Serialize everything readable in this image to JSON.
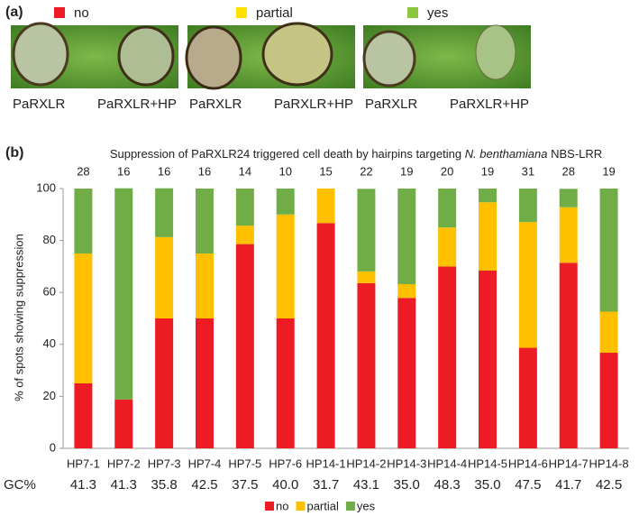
{
  "panel_a": {
    "label": "(a)",
    "legend": [
      {
        "name": "no",
        "color": "#ed1c24"
      },
      {
        "name": "partial",
        "color": "#ffe000"
      },
      {
        "name": "yes",
        "color": "#8cc63f"
      }
    ],
    "photos": [
      {
        "left": "PaRXLR",
        "right": "PaRXLR+HP"
      },
      {
        "left": "PaRXLR",
        "right": "PaRXLR+HP"
      },
      {
        "left": "PaRXLR",
        "right": "PaRXLR+HP"
      }
    ]
  },
  "chart_data": {
    "type": "bar",
    "stacked": true,
    "panel_label": "(b)",
    "title_parts": [
      "Suppression of PaRXLR24 triggered cell death by hairpins targeting",
      "N. benthamiana",
      "NBS-LRR"
    ],
    "ylabel": "% of spots showing suppression",
    "categories": [
      "HP7-1",
      "HP7-2",
      "HP7-3",
      "HP7-4",
      "HP7-5",
      "HP7-6",
      "HP14-1",
      "HP14-2",
      "HP14-3",
      "HP14-4",
      "HP14-5",
      "HP14-6",
      "HP14-7",
      "HP14-8"
    ],
    "series": [
      {
        "name": "no",
        "color": "#ed1c24",
        "values": [
          25,
          18.8,
          50,
          50,
          78.6,
          50,
          86.7,
          63.6,
          57.9,
          70,
          68.4,
          38.7,
          71.4,
          36.8
        ]
      },
      {
        "name": "partial",
        "color": "#ffc000",
        "values": [
          50,
          0,
          31.3,
          25,
          7.1,
          40,
          13.3,
          4.5,
          5.3,
          15,
          26.3,
          48.4,
          21.4,
          15.8
        ]
      },
      {
        "name": "yes",
        "color": "#70ad47",
        "values": [
          25,
          81.3,
          18.8,
          25,
          14.3,
          10,
          0,
          31.8,
          36.8,
          15,
          5.3,
          12.9,
          7.1,
          47.4
        ]
      }
    ],
    "counts": [
      28,
      16,
      16,
      16,
      14,
      10,
      15,
      22,
      19,
      20,
      19,
      31,
      28,
      19
    ],
    "gc_label": "GC%",
    "gc_values": [
      "41.3",
      "41.3",
      "35.8",
      "42.5",
      "37.5",
      "40.0",
      "31.7",
      "43.1",
      "35.0",
      "48.3",
      "35.0",
      "47.5",
      "41.7",
      "42.5"
    ],
    "ylim": [
      0,
      100
    ],
    "yticks": [
      0,
      20,
      40,
      60,
      80,
      100
    ],
    "legend": "bottom"
  }
}
